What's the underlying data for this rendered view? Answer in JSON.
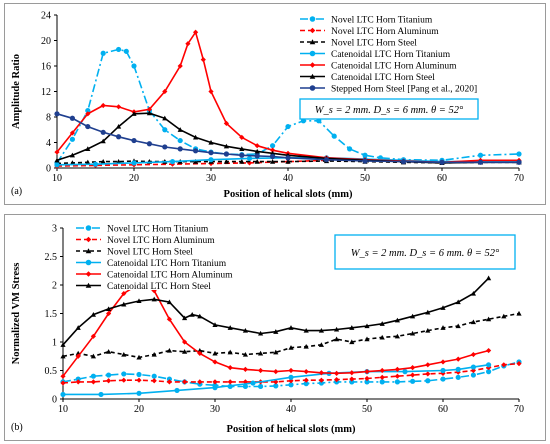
{
  "chart_data": [
    {
      "type": "line",
      "panel_label": "(a)",
      "xlabel": "Position of helical slots (mm)",
      "ylabel": "Amplitude Ratio",
      "xlim": [
        10,
        70
      ],
      "ylim": [
        0,
        24
      ],
      "xticks": [
        10,
        20,
        30,
        40,
        50,
        60,
        70
      ],
      "yticks": [
        0,
        4,
        8,
        12,
        16,
        20,
        24
      ],
      "grid": false,
      "legend_position": "top-right",
      "annotation": "W_s = 2 mm. D_s = 6 mm. θ = 52°",
      "series": [
        {
          "name": "Novel LTC Horn Titanium",
          "color": "#00b0f0",
          "dash": "8,3,2,3",
          "marker": "circle",
          "x": [
            10,
            12,
            14,
            16,
            18,
            19,
            20,
            22,
            24,
            26,
            28,
            30,
            32,
            34,
            36,
            38,
            40,
            42,
            44,
            46,
            48,
            50,
            52,
            55,
            60,
            65,
            70
          ],
          "y": [
            0.8,
            4.5,
            9.0,
            18.0,
            18.6,
            18.3,
            16.0,
            9.0,
            6.0,
            4.3,
            3.0,
            2.5,
            2.2,
            2.1,
            2.2,
            3.5,
            6.5,
            7.4,
            7.4,
            5.0,
            3.0,
            2.0,
            1.6,
            1.3,
            1.2,
            2.0,
            2.2
          ]
        },
        {
          "name": "Novel LTC Horn Aluminum",
          "color": "#ff0000",
          "dash": "5,3",
          "marker": "diamond",
          "x": [
            10,
            15,
            20,
            25,
            30,
            35,
            40,
            45,
            50,
            55,
            60,
            65,
            70
          ],
          "y": [
            0.3,
            0.4,
            0.5,
            0.6,
            0.7,
            0.8,
            1.0,
            1.2,
            1.2,
            1.0,
            0.9,
            1.0,
            1.0
          ]
        },
        {
          "name": "Novel LTC Horn Steel",
          "color": "#000000",
          "dash": "4,3",
          "marker": "triangle",
          "x": [
            10,
            12,
            14,
            16,
            18,
            20,
            22,
            24,
            26,
            28,
            30,
            32,
            34,
            36,
            38,
            40,
            45,
            50,
            55,
            60,
            65,
            70
          ],
          "y": [
            0.7,
            0.8,
            0.9,
            1.0,
            1.0,
            1.1,
            1.0,
            1.0,
            1.0,
            1.0,
            1.0,
            1.0,
            1.0,
            1.0,
            1.0,
            1.0,
            1.1,
            1.0,
            0.9,
            0.8,
            0.9,
            0.9
          ]
        },
        {
          "name": "Catenoidal LTC Horn Titanium",
          "color": "#00b0f0",
          "dash": "",
          "marker": "circle",
          "x": [
            10,
            15,
            20,
            25,
            30,
            35,
            40,
            45,
            50,
            55,
            60,
            65,
            70
          ],
          "y": [
            0.5,
            0.6,
            0.8,
            1.0,
            1.3,
            1.5,
            1.6,
            1.6,
            1.4,
            1.2,
            1.0,
            1.0,
            1.0
          ]
        },
        {
          "name": "Catenoidal LTC Horn Aluminum",
          "color": "#ff0000",
          "dash": "",
          "marker": "diamond",
          "x": [
            10,
            12,
            14,
            16,
            18,
            20,
            22,
            24,
            26,
            27,
            28,
            29,
            30,
            32,
            34,
            36,
            38,
            40,
            45,
            50,
            55,
            60,
            65,
            70
          ],
          "y": [
            2.5,
            5.5,
            8.5,
            9.8,
            9.6,
            8.8,
            9.2,
            12.0,
            16.0,
            19.5,
            21.3,
            17.0,
            12.0,
            7.0,
            4.8,
            3.5,
            2.8,
            2.3,
            1.6,
            1.3,
            1.1,
            0.9,
            1.2,
            1.2
          ]
        },
        {
          "name": "Catenoidal LTC Horn Steel",
          "color": "#000000",
          "dash": "",
          "marker": "triangle",
          "x": [
            10,
            12,
            14,
            16,
            18,
            20,
            22,
            24,
            26,
            28,
            30,
            32,
            34,
            36,
            38,
            40,
            45,
            50,
            55,
            60,
            65,
            70
          ],
          "y": [
            1.2,
            2.0,
            3.0,
            4.2,
            6.5,
            8.5,
            8.6,
            7.8,
            6.0,
            4.8,
            4.0,
            3.4,
            3.0,
            2.6,
            2.3,
            2.0,
            1.5,
            1.2,
            1.0,
            0.8,
            0.9,
            0.9
          ]
        },
        {
          "name": "Stepped Horn Steel [Pang et al., 2020]",
          "color": "#1f3f8f",
          "dash": "",
          "marker": "circle",
          "x": [
            10,
            12,
            14,
            16,
            18,
            20,
            22,
            24,
            26,
            28,
            30,
            32,
            34,
            36,
            38,
            40,
            45,
            50,
            55,
            60,
            65,
            70
          ],
          "y": [
            8.5,
            7.8,
            6.5,
            5.6,
            4.9,
            4.3,
            3.8,
            3.3,
            3.0,
            2.7,
            2.4,
            2.2,
            2.0,
            1.9,
            1.8,
            1.6,
            1.3,
            1.1,
            1.0,
            0.9,
            0.9,
            0.9
          ]
        }
      ]
    },
    {
      "type": "line",
      "panel_label": "(b)",
      "xlabel": "Position of helical slots (mm)",
      "ylabel": "Normalized VM Stress",
      "xlim": [
        10,
        70
      ],
      "ylim": [
        0,
        3
      ],
      "xticks": [
        10,
        20,
        30,
        40,
        50,
        60,
        70
      ],
      "yticks": [
        0,
        0.5,
        1,
        1.5,
        2,
        2.5,
        3
      ],
      "grid": false,
      "legend_position": "top-left",
      "annotation": "W_s = 2 mm. D_s = 6 mm. θ = 52°",
      "series": [
        {
          "name": "Novel LTC Horn Titanium",
          "color": "#00b0f0",
          "dash": "8,3,2,3",
          "marker": "circle",
          "x": [
            10,
            12,
            14,
            16,
            18,
            20,
            22,
            24,
            26,
            28,
            30,
            32,
            34,
            36,
            38,
            40,
            42,
            44,
            46,
            48,
            50,
            52,
            54,
            56,
            58,
            60,
            62,
            64,
            66,
            68,
            70
          ],
          "y": [
            0.3,
            0.35,
            0.4,
            0.42,
            0.44,
            0.43,
            0.4,
            0.35,
            0.3,
            0.26,
            0.24,
            0.22,
            0.22,
            0.22,
            0.23,
            0.25,
            0.27,
            0.28,
            0.3,
            0.3,
            0.3,
            0.3,
            0.3,
            0.31,
            0.32,
            0.35,
            0.38,
            0.42,
            0.48,
            0.58,
            0.65
          ]
        },
        {
          "name": "Novel LTC Horn Aluminum",
          "color": "#ff0000",
          "dash": "5,3",
          "marker": "diamond",
          "x": [
            10,
            12,
            14,
            16,
            18,
            20,
            22,
            24,
            26,
            28,
            30,
            32,
            34,
            36,
            38,
            40,
            42,
            44,
            46,
            48,
            50,
            52,
            54,
            56,
            58,
            60,
            62,
            64,
            66,
            68,
            70
          ],
          "y": [
            0.28,
            0.3,
            0.3,
            0.32,
            0.33,
            0.33,
            0.32,
            0.3,
            0.3,
            0.3,
            0.3,
            0.3,
            0.3,
            0.3,
            0.3,
            0.32,
            0.33,
            0.33,
            0.34,
            0.35,
            0.36,
            0.38,
            0.4,
            0.42,
            0.44,
            0.45,
            0.47,
            0.5,
            0.55,
            0.6,
            0.62
          ]
        },
        {
          "name": "Novel LTC Horn Steel",
          "color": "#000000",
          "dash": "4,3",
          "marker": "triangle",
          "x": [
            10,
            12,
            14,
            16,
            18,
            20,
            22,
            24,
            26,
            28,
            30,
            32,
            34,
            36,
            38,
            40,
            42,
            44,
            46,
            48,
            50,
            52,
            54,
            56,
            58,
            60,
            62,
            64,
            66,
            68,
            70
          ],
          "y": [
            0.75,
            0.8,
            0.75,
            0.83,
            0.78,
            0.73,
            0.78,
            0.85,
            0.83,
            0.85,
            0.8,
            0.82,
            0.78,
            0.8,
            0.82,
            0.9,
            0.92,
            0.95,
            1.05,
            1.0,
            1.05,
            1.08,
            1.1,
            1.15,
            1.2,
            1.25,
            1.28,
            1.35,
            1.4,
            1.45,
            1.5
          ]
        },
        {
          "name": "Catenoidal LTC Horn Titanium",
          "color": "#00b0f0",
          "dash": "",
          "marker": "circle",
          "x": [
            10,
            15,
            20,
            25,
            30,
            35,
            40,
            45,
            50,
            55,
            60,
            62,
            64,
            66
          ],
          "y": [
            0.08,
            0.08,
            0.1,
            0.15,
            0.2,
            0.28,
            0.38,
            0.45,
            0.48,
            0.48,
            0.5,
            0.52,
            0.56,
            0.6
          ]
        },
        {
          "name": "Catenoidal LTC Horn Aluminum",
          "color": "#ff0000",
          "dash": "",
          "marker": "diamond",
          "x": [
            10,
            12,
            14,
            16,
            18,
            20,
            22,
            24,
            26,
            28,
            30,
            32,
            34,
            36,
            38,
            40,
            42,
            44,
            46,
            48,
            50,
            52,
            54,
            56,
            58,
            60,
            62,
            64,
            66
          ],
          "y": [
            0.4,
            0.75,
            1.1,
            1.5,
            1.85,
            2.02,
            1.9,
            1.4,
            1.0,
            0.8,
            0.65,
            0.55,
            0.52,
            0.5,
            0.48,
            0.5,
            0.48,
            0.46,
            0.45,
            0.46,
            0.48,
            0.5,
            0.52,
            0.55,
            0.6,
            0.65,
            0.7,
            0.78,
            0.85
          ]
        },
        {
          "name": "Catenoidal LTC Horn Steel",
          "color": "#000000",
          "dash": "",
          "marker": "triangle",
          "x": [
            10,
            12,
            14,
            16,
            18,
            20,
            22,
            24,
            26,
            27,
            28,
            30,
            32,
            34,
            36,
            38,
            40,
            42,
            44,
            46,
            48,
            50,
            52,
            54,
            56,
            58,
            60,
            62,
            64,
            66
          ],
          "y": [
            0.95,
            1.25,
            1.48,
            1.58,
            1.66,
            1.72,
            1.75,
            1.7,
            1.42,
            1.48,
            1.45,
            1.3,
            1.25,
            1.2,
            1.15,
            1.18,
            1.25,
            1.2,
            1.2,
            1.22,
            1.25,
            1.28,
            1.32,
            1.38,
            1.45,
            1.52,
            1.6,
            1.7,
            1.85,
            2.12
          ]
        }
      ]
    }
  ]
}
